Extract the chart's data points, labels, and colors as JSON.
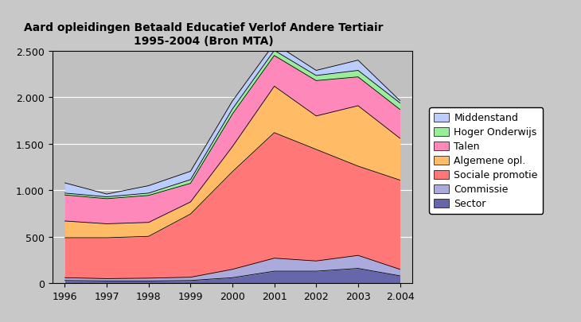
{
  "title": "Aard opleidingen Betaald Educatief Verlof Andere Tertiair\n1995-2004 (Bron MTA)",
  "years": [
    1996,
    1997,
    1998,
    1999,
    2000,
    2001,
    2002,
    2003,
    2004
  ],
  "series": {
    "Sector": [
      30,
      25,
      25,
      30,
      60,
      130,
      130,
      160,
      80
    ],
    "Commissie": [
      30,
      25,
      30,
      35,
      90,
      140,
      110,
      140,
      70
    ],
    "Sociale promotie": [
      430,
      440,
      450,
      680,
      1050,
      1350,
      1200,
      960,
      960
    ],
    "Algemene opl.": [
      180,
      150,
      150,
      130,
      270,
      500,
      360,
      650,
      450
    ],
    "Talen": [
      280,
      270,
      290,
      200,
      350,
      330,
      380,
      310,
      310
    ],
    "Hoger Onderwijs": [
      20,
      20,
      25,
      40,
      55,
      55,
      55,
      70,
      70
    ],
    "Middenstand": [
      110,
      30,
      80,
      90,
      85,
      75,
      55,
      110,
      25
    ]
  },
  "colors": {
    "Sector": "#6666aa",
    "Commissie": "#aaaadd",
    "Sociale promotie": "#ff7777",
    "Algemene opl.": "#ffbb66",
    "Talen": "#ff88bb",
    "Hoger Onderwijs": "#99ee99",
    "Middenstand": "#bbccff"
  },
  "legend_order": [
    "Middenstand",
    "Hoger Onderwijs",
    "Talen",
    "Algemene opl.",
    "Sociale promotie",
    "Commissie",
    "Sector"
  ],
  "ylim": [
    0,
    2500
  ],
  "yticks": [
    0,
    500,
    1000,
    1500,
    2000,
    2500
  ],
  "ytick_labels": [
    "0",
    "500",
    "1.000",
    "1.500",
    "2.000",
    "2.500"
  ],
  "background_color": "#c8c8c8",
  "plot_bg_color": "#c0c0c0",
  "title_fontsize": 10,
  "tick_fontsize": 9,
  "legend_fontsize": 9
}
